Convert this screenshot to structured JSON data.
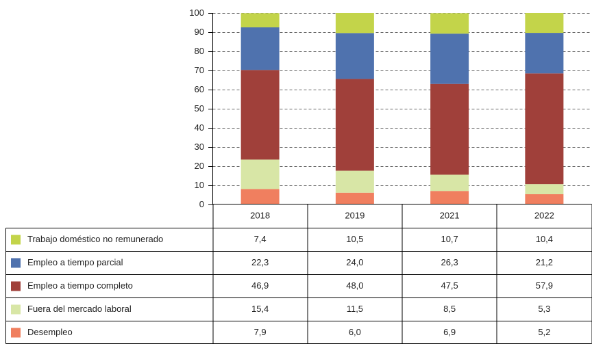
{
  "chart_data": {
    "type": "stacked_bar",
    "categories": [
      "2018",
      "2019",
      "2021",
      "2022"
    ],
    "series": [
      {
        "name": "Trabajo doméstico no remunerado",
        "color": "#c3d44a",
        "values": [
          7.4,
          10.5,
          10.7,
          10.4
        ],
        "value_labels": [
          "7,4",
          "10,5",
          "10,7",
          "10,4"
        ]
      },
      {
        "name": "Empleo a tiempo parcial",
        "color": "#4f72ae",
        "values": [
          22.3,
          24.0,
          26.3,
          21.2
        ],
        "value_labels": [
          "22,3",
          "24,0",
          "26,3",
          "21,2"
        ]
      },
      {
        "name": "Empleo a tiempo completo",
        "color": "#a0403a",
        "values": [
          46.9,
          48.0,
          47.5,
          57.9
        ],
        "value_labels": [
          "46,9",
          "48,0",
          "47,5",
          "57,9"
        ]
      },
      {
        "name": "Fuera del mercado laboral",
        "color": "#d8e6a6",
        "values": [
          15.4,
          11.5,
          8.5,
          5.3
        ],
        "value_labels": [
          "15,4",
          "11,5",
          "8,5",
          "5,3"
        ]
      },
      {
        "name": "Desempleo",
        "color": "#f07f5f",
        "values": [
          7.9,
          6.0,
          6.9,
          5.2
        ],
        "value_labels": [
          "7,9",
          "6,0",
          "6,9",
          "5,2"
        ]
      }
    ],
    "ylim": [
      0,
      100
    ],
    "yticks": [
      0,
      10,
      20,
      30,
      40,
      50,
      60,
      70,
      80,
      90,
      100
    ],
    "grid": true
  }
}
